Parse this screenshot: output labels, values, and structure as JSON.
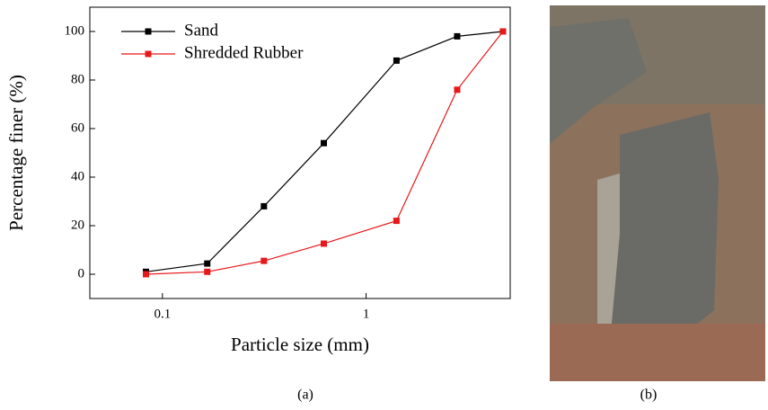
{
  "chart_data": {
    "type": "line",
    "xlabel": "Particle size (mm)",
    "ylabel": "Percentage finer (%)",
    "xscale": "log",
    "xlim": [
      0.044,
      5.1
    ],
    "ylim": [
      -10,
      110
    ],
    "xticks": [
      0.1,
      1
    ],
    "yticks": [
      0,
      20,
      40,
      60,
      80,
      100
    ],
    "legend": "upper left",
    "series": [
      {
        "name": "Sand",
        "color": "#000000",
        "x": [
          0.083,
          0.166,
          0.315,
          0.62,
          1.41,
          2.8,
          4.7
        ],
        "values": [
          1,
          4.4,
          28,
          54,
          88,
          98,
          100
        ]
      },
      {
        "name": "Shredded Rubber",
        "color": "#e8181a",
        "x": [
          0.083,
          0.166,
          0.315,
          0.62,
          1.41,
          2.8,
          4.7
        ],
        "values": [
          0,
          1,
          5.5,
          12.6,
          22,
          76,
          100
        ]
      }
    ]
  },
  "captions": [
    "(a)",
    "(b)"
  ]
}
